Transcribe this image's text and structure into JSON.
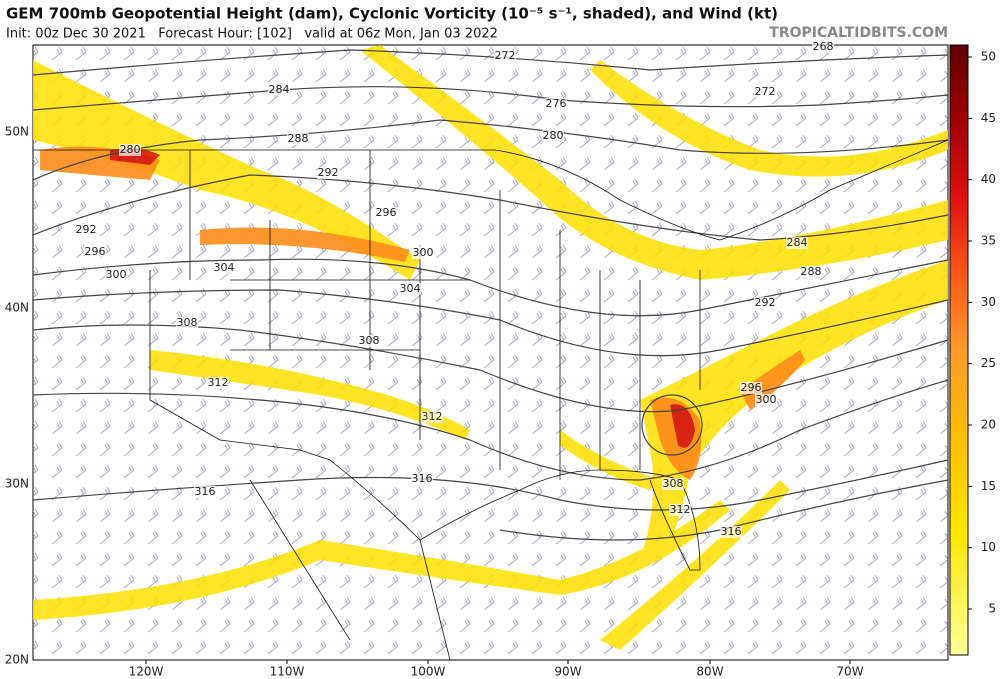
{
  "header": {
    "title": "GEM 700mb Geopotential Height (dam), Cyclonic Vorticity (10⁻⁵ s⁻¹, shaded), and Wind (kt)",
    "subtitle": "Init: 00z Dec 30 2021   Forecast Hour: [102]   valid at 06z Mon, Jan 03 2022",
    "site": "TROPICALTIDBITS.COM"
  },
  "map": {
    "lat_labels": [
      "50N",
      "40N",
      "30N",
      "20N"
    ],
    "lon_labels": [
      "120W",
      "110W",
      "100W",
      "90W",
      "80W",
      "70W"
    ],
    "contour_labels": [
      "268",
      "272",
      "272",
      "276",
      "280",
      "284",
      "288",
      "292",
      "296",
      "300",
      "304",
      "308",
      "280",
      "292",
      "296",
      "300",
      "304",
      "308",
      "312",
      "312",
      "316",
      "316",
      "284",
      "288",
      "292",
      "296",
      "300",
      "308",
      "312",
      "316"
    ]
  },
  "colorbar": {
    "ticks": [
      5,
      10,
      15,
      20,
      25,
      30,
      35,
      40,
      45,
      50
    ]
  }
}
